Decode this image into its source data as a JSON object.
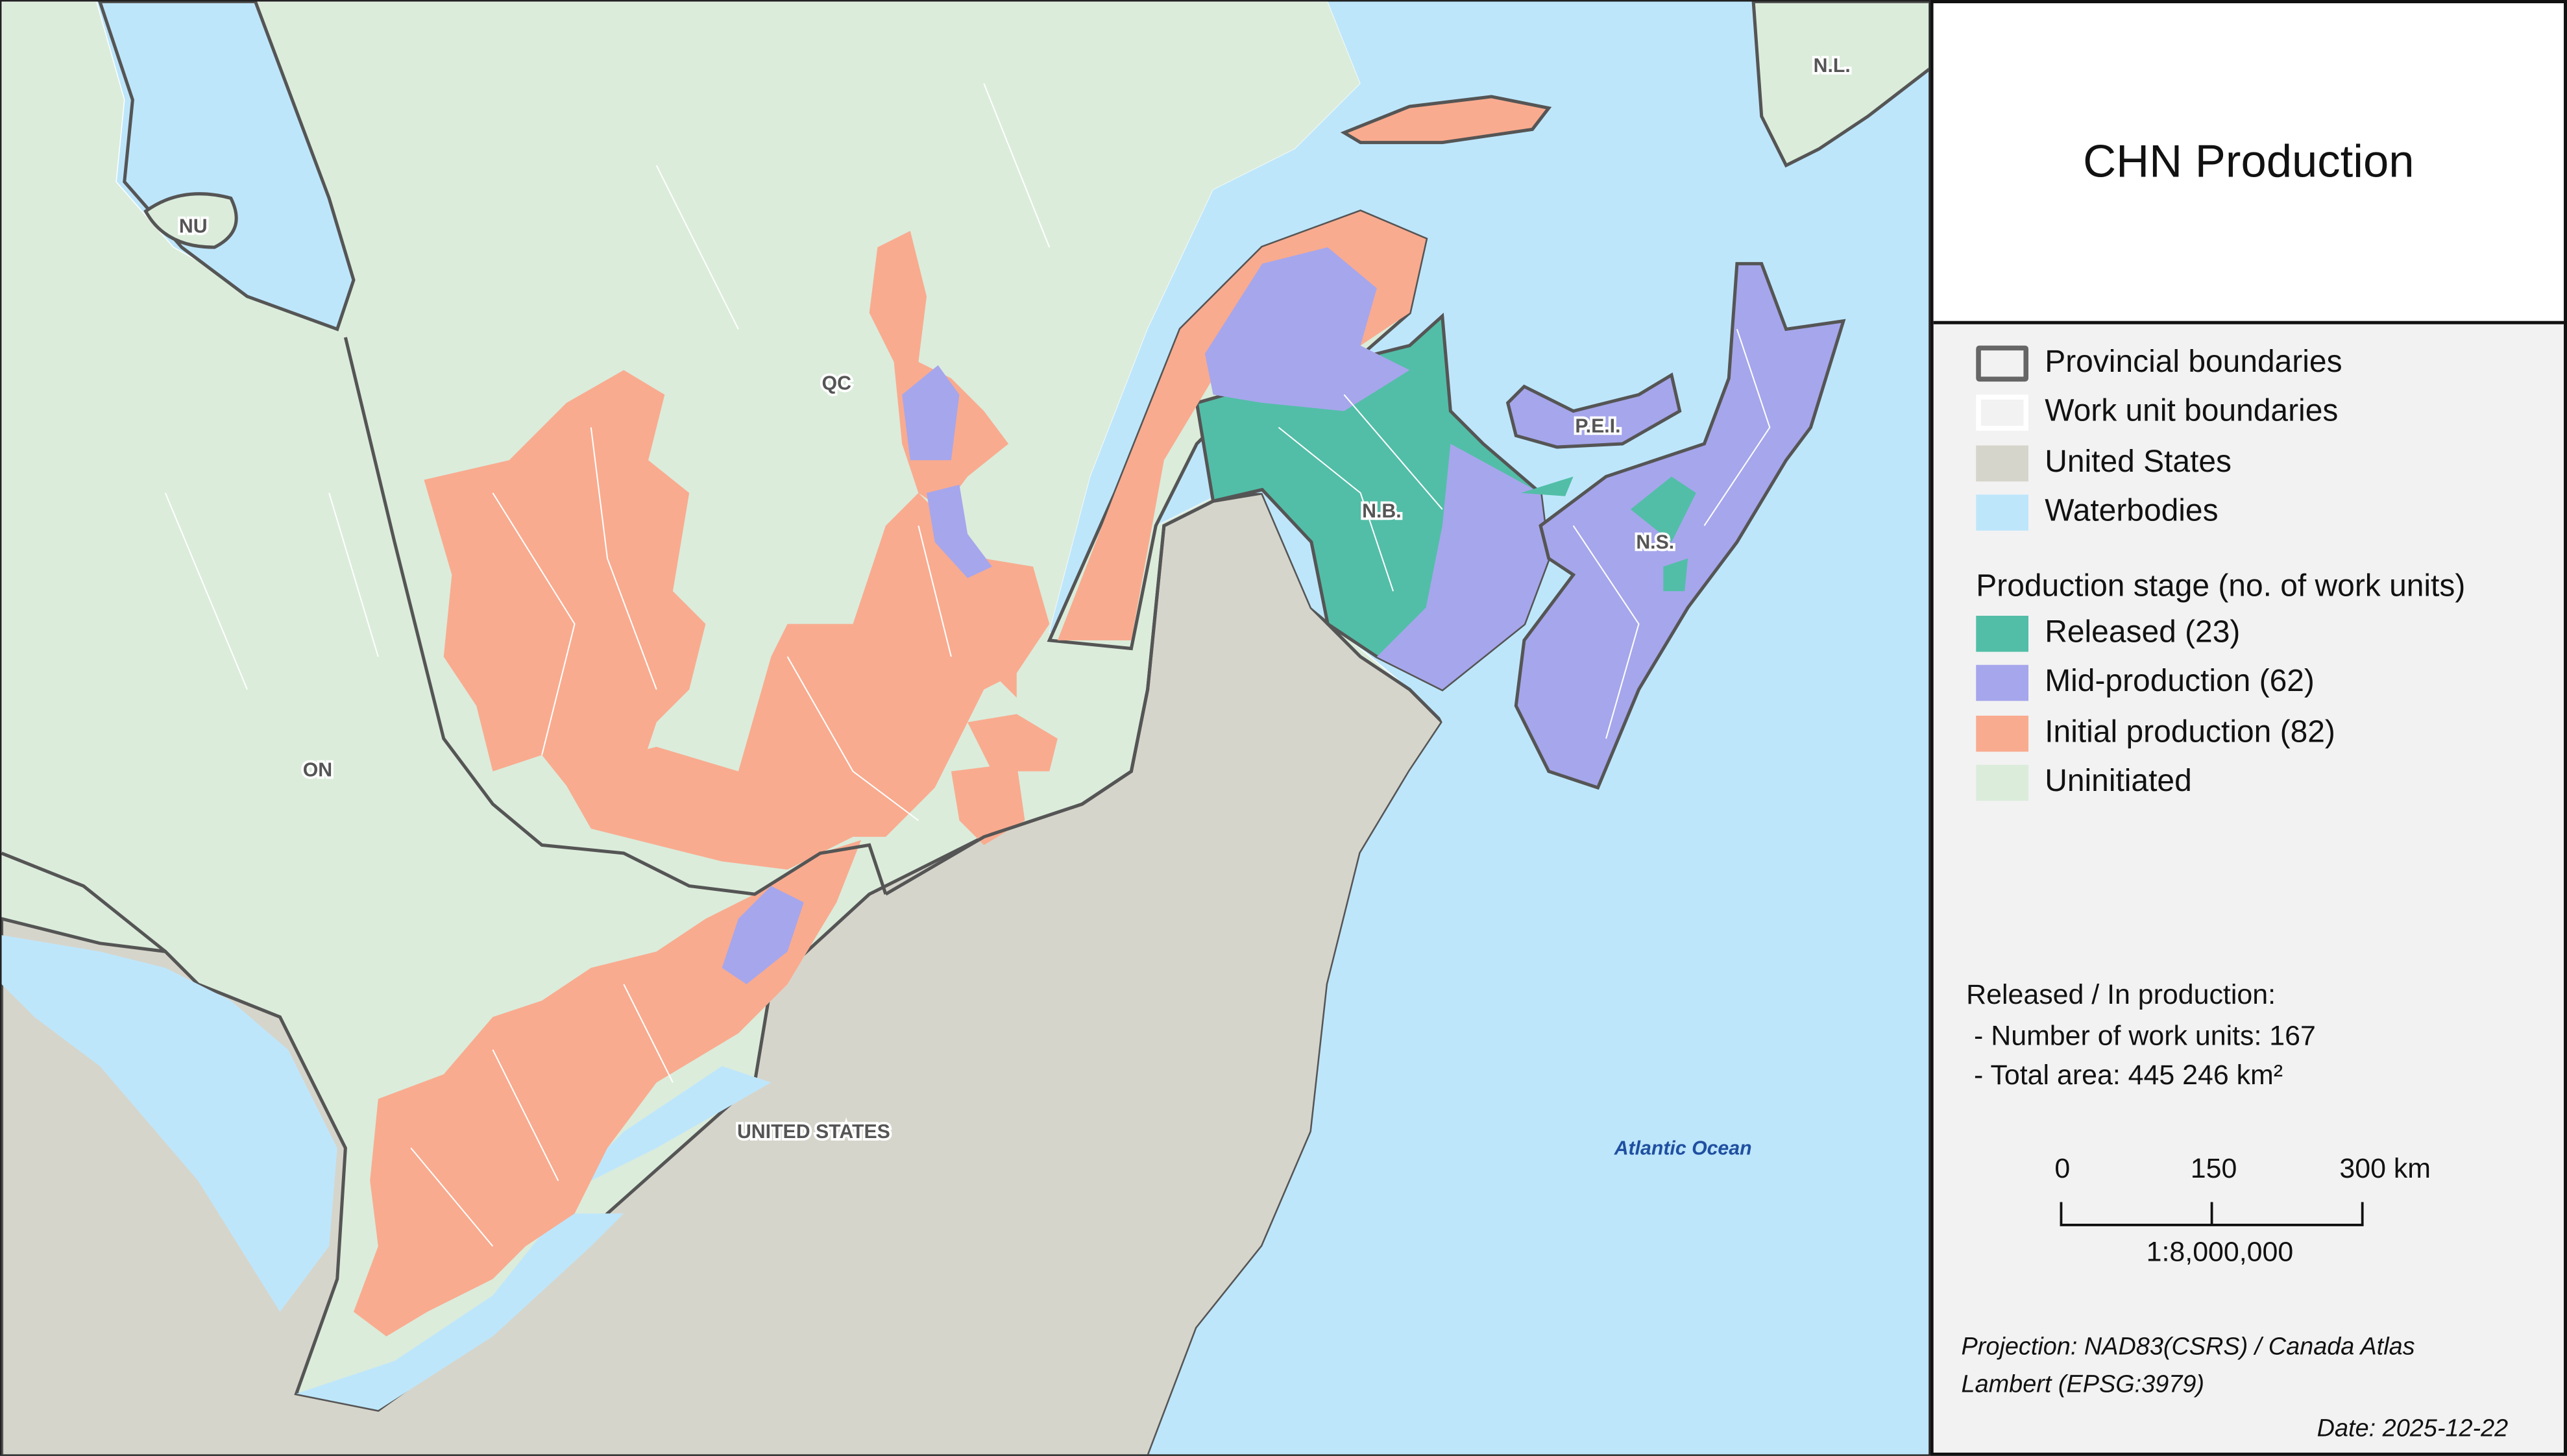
{
  "title": "CHN Production",
  "colors": {
    "water": "#bee6fb",
    "uninitiated": "#dbecdb",
    "united_states": "#d6d5cb",
    "released": "#52bea7",
    "mid_production": "#a6a6ec",
    "initial_production": "#f9ab8f",
    "provincial_boundary": "#555555"
  },
  "map_labels": {
    "nu": "NU",
    "qc": "QC",
    "on": "ON",
    "nb": "N.B.",
    "pei": "P.E.I.",
    "ns": "N.S.",
    "nl": "N.L.",
    "us": "UNITED STATES",
    "ocean": "Atlantic Ocean"
  },
  "legend": {
    "base_layers": [
      {
        "label": "Provincial boundaries"
      },
      {
        "label": "Work unit boundaries"
      },
      {
        "label": "United States"
      },
      {
        "label": "Waterbodies"
      }
    ],
    "stage_heading": "Production stage (no. of work units)",
    "stages": [
      {
        "label": "Released (23)"
      },
      {
        "label": "Mid-production (62)"
      },
      {
        "label": "Initial production (82)"
      },
      {
        "label": "Uninitiated"
      }
    ]
  },
  "stats": {
    "heading": "Released / In production:",
    "units": " - Number of work units: 167",
    "area": " - Total area: 445 246 km²"
  },
  "scale": {
    "t0": "0",
    "t1": "150",
    "t2": "300 km",
    "ratio": "1:8,000,000"
  },
  "projection": {
    "line1": "Projection: NAD83(CSRS) / Canada Atlas",
    "line2": "Lambert (EPSG:3979)"
  },
  "date": "Date: 2025-12-22"
}
